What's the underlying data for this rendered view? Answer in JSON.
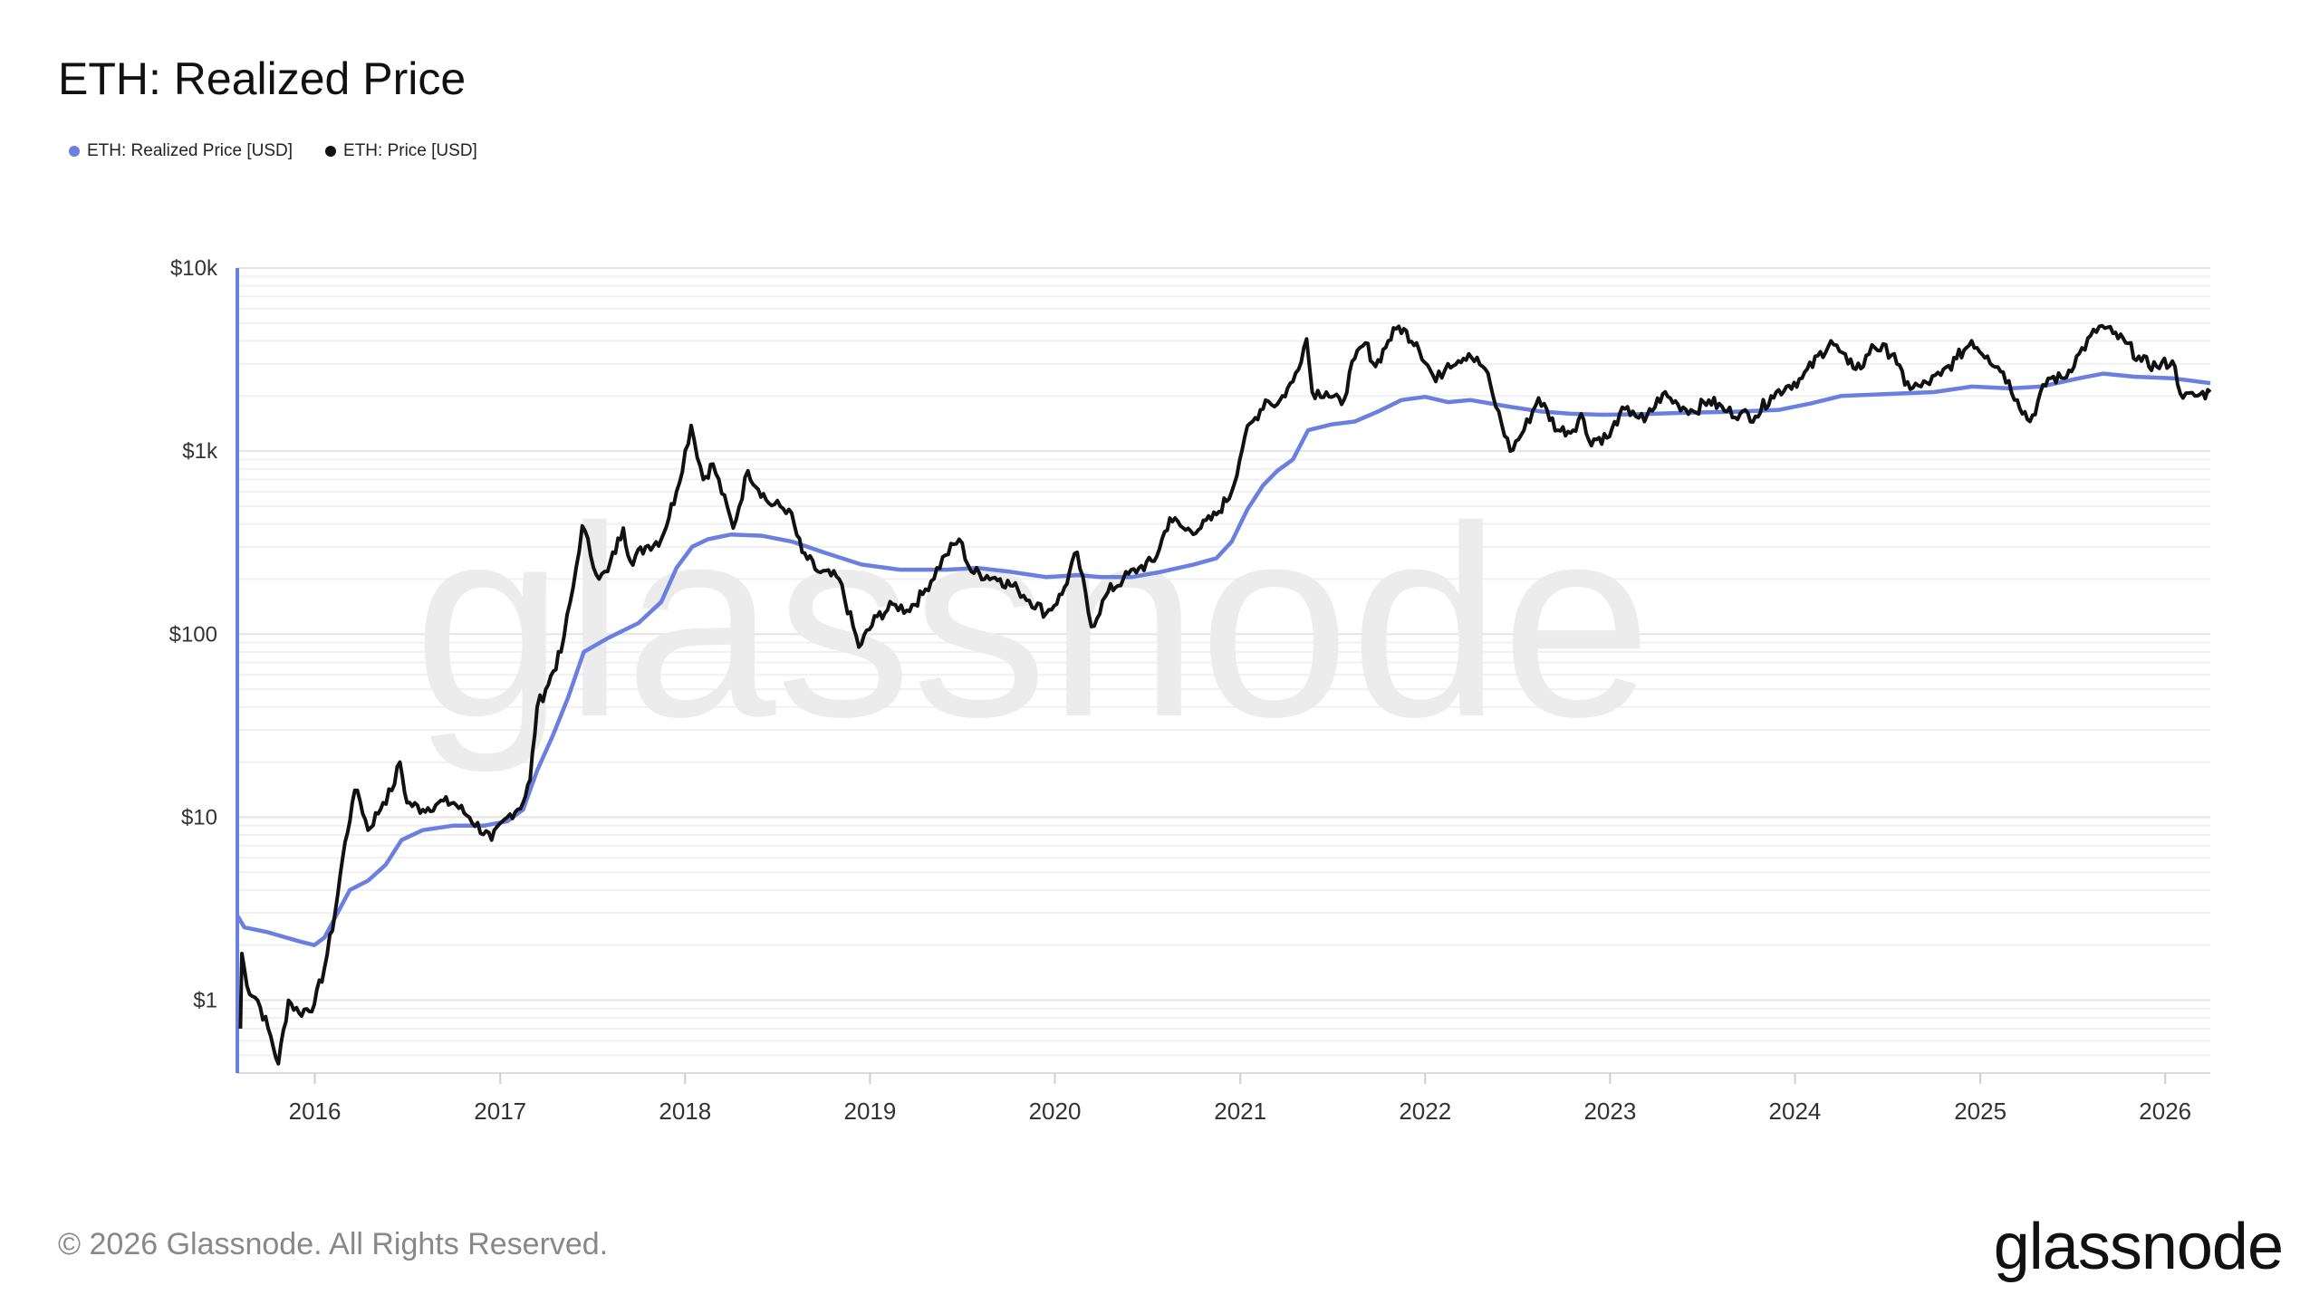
{
  "title": "ETH: Realized Price",
  "legend": [
    {
      "label": "ETH: Realized Price [USD]",
      "color": "#6a7fe0"
    },
    {
      "label": "ETH: Price [USD]",
      "color": "#111111"
    }
  ],
  "watermark": "glassnode",
  "footer": "© 2026 Glassnode. All Rights Reserved.",
  "brand": "glassnode",
  "chart_data": {
    "type": "line",
    "title": "ETH: Realized Price",
    "xlabel": "",
    "ylabel": "",
    "y_scale": "log",
    "ylim": [
      0.4,
      10000
    ],
    "xlim": [
      "2015-08-01",
      "2026-03-31"
    ],
    "y_ticks": [
      {
        "value": 1,
        "label": "$1"
      },
      {
        "value": 10,
        "label": "$10"
      },
      {
        "value": 100,
        "label": "$100"
      },
      {
        "value": 1000,
        "label": "$1k"
      },
      {
        "value": 10000,
        "label": "$10k"
      }
    ],
    "x_ticks": [
      {
        "value": "2016-01-01",
        "label": "2016"
      },
      {
        "value": "2017-01-01",
        "label": "2017"
      },
      {
        "value": "2018-01-01",
        "label": "2018"
      },
      {
        "value": "2019-01-01",
        "label": "2019"
      },
      {
        "value": "2020-01-01",
        "label": "2020"
      },
      {
        "value": "2021-01-01",
        "label": "2021"
      },
      {
        "value": "2022-01-01",
        "label": "2022"
      },
      {
        "value": "2023-01-01",
        "label": "2023"
      },
      {
        "value": "2024-01-01",
        "label": "2024"
      },
      {
        "value": "2025-01-01",
        "label": "2025"
      },
      {
        "value": "2026-01-01",
        "label": "2026"
      }
    ],
    "grid": true,
    "legend_position": "top-left",
    "series": [
      {
        "name": "ETH: Realized Price [USD]",
        "color": "#6a7fe0",
        "points": [
          [
            "2015-08-01",
            2.9
          ],
          [
            "2015-08-15",
            2.5
          ],
          [
            "2015-10-01",
            2.35
          ],
          [
            "2015-12-01",
            2.1
          ],
          [
            "2015-12-31",
            2.0
          ],
          [
            "2016-01-20",
            2.2
          ],
          [
            "2016-02-15",
            3.0
          ],
          [
            "2016-03-10",
            4.0
          ],
          [
            "2016-04-15",
            4.5
          ],
          [
            "2016-05-20",
            5.5
          ],
          [
            "2016-06-20",
            7.5
          ],
          [
            "2016-08-01",
            8.5
          ],
          [
            "2016-10-01",
            9.0
          ],
          [
            "2016-12-01",
            9.0
          ],
          [
            "2017-01-15",
            9.5
          ],
          [
            "2017-02-15",
            11
          ],
          [
            "2017-03-15",
            18
          ],
          [
            "2017-04-15",
            28
          ],
          [
            "2017-05-15",
            45
          ],
          [
            "2017-06-15",
            80
          ],
          [
            "2017-08-01",
            95
          ],
          [
            "2017-10-01",
            115
          ],
          [
            "2017-11-15",
            150
          ],
          [
            "2017-12-15",
            230
          ],
          [
            "2018-01-15",
            300
          ],
          [
            "2018-02-15",
            330
          ],
          [
            "2018-04-01",
            350
          ],
          [
            "2018-06-01",
            345
          ],
          [
            "2018-08-01",
            320
          ],
          [
            "2018-10-01",
            280
          ],
          [
            "2018-12-15",
            240
          ],
          [
            "2019-03-01",
            225
          ],
          [
            "2019-06-01",
            225
          ],
          [
            "2019-08-01",
            230
          ],
          [
            "2019-10-01",
            220
          ],
          [
            "2019-12-15",
            205
          ],
          [
            "2020-02-15",
            210
          ],
          [
            "2020-04-01",
            205
          ],
          [
            "2020-06-01",
            205
          ],
          [
            "2020-08-01",
            220
          ],
          [
            "2020-10-01",
            240
          ],
          [
            "2020-11-15",
            260
          ],
          [
            "2020-12-15",
            320
          ],
          [
            "2021-01-15",
            480
          ],
          [
            "2021-02-15",
            650
          ],
          [
            "2021-03-15",
            780
          ],
          [
            "2021-04-15",
            900
          ],
          [
            "2021-05-15",
            1300
          ],
          [
            "2021-07-01",
            1400
          ],
          [
            "2021-08-15",
            1450
          ],
          [
            "2021-10-01",
            1650
          ],
          [
            "2021-11-15",
            1900
          ],
          [
            "2022-01-01",
            1980
          ],
          [
            "2022-02-15",
            1850
          ],
          [
            "2022-04-01",
            1900
          ],
          [
            "2022-06-15",
            1750
          ],
          [
            "2022-08-15",
            1650
          ],
          [
            "2022-10-15",
            1600
          ],
          [
            "2022-12-15",
            1580
          ],
          [
            "2023-03-01",
            1590
          ],
          [
            "2023-06-01",
            1620
          ],
          [
            "2023-09-01",
            1640
          ],
          [
            "2023-12-01",
            1680
          ],
          [
            "2024-02-01",
            1820
          ],
          [
            "2024-04-01",
            2000
          ],
          [
            "2024-07-01",
            2050
          ],
          [
            "2024-10-01",
            2100
          ],
          [
            "2024-12-15",
            2250
          ],
          [
            "2025-03-01",
            2200
          ],
          [
            "2025-05-01",
            2250
          ],
          [
            "2025-07-15",
            2500
          ],
          [
            "2025-09-01",
            2650
          ],
          [
            "2025-11-01",
            2550
          ],
          [
            "2026-01-15",
            2500
          ],
          [
            "2026-03-31",
            2350
          ]
        ]
      },
      {
        "name": "ETH: Price [USD]",
        "color": "#111111",
        "points": [
          [
            "2015-08-07",
            0.7
          ],
          [
            "2015-08-10",
            1.8
          ],
          [
            "2015-08-20",
            1.2
          ],
          [
            "2015-09-10",
            1.0
          ],
          [
            "2015-10-01",
            0.7
          ],
          [
            "2015-10-21",
            0.45
          ],
          [
            "2015-11-10",
            1.0
          ],
          [
            "2015-12-01",
            0.85
          ],
          [
            "2015-12-31",
            0.95
          ],
          [
            "2016-01-20",
            1.5
          ],
          [
            "2016-02-10",
            3.0
          ],
          [
            "2016-02-25",
            6.0
          ],
          [
            "2016-03-15",
            12
          ],
          [
            "2016-03-25",
            14
          ],
          [
            "2016-04-15",
            8.5
          ],
          [
            "2016-05-15",
            12
          ],
          [
            "2016-06-01",
            14
          ],
          [
            "2016-06-17",
            20
          ],
          [
            "2016-07-01",
            12
          ],
          [
            "2016-08-01",
            11
          ],
          [
            "2016-09-01",
            12
          ],
          [
            "2016-10-01",
            12
          ],
          [
            "2016-11-01",
            10
          ],
          [
            "2016-12-15",
            7.5
          ],
          [
            "2017-01-15",
            10
          ],
          [
            "2017-02-15",
            12
          ],
          [
            "2017-03-01",
            16
          ],
          [
            "2017-03-15",
            40
          ],
          [
            "2017-04-01",
            50
          ],
          [
            "2017-05-01",
            80
          ],
          [
            "2017-05-25",
            180
          ],
          [
            "2017-06-12",
            390
          ],
          [
            "2017-07-15",
            200
          ],
          [
            "2017-08-01",
            220
          ],
          [
            "2017-09-01",
            380
          ],
          [
            "2017-09-15",
            250
          ],
          [
            "2017-10-15",
            300
          ],
          [
            "2017-11-15",
            330
          ],
          [
            "2017-12-15",
            600
          ],
          [
            "2018-01-13",
            1380
          ],
          [
            "2018-02-06",
            700
          ],
          [
            "2018-02-25",
            850
          ],
          [
            "2018-04-06",
            380
          ],
          [
            "2018-05-05",
            780
          ],
          [
            "2018-06-15",
            520
          ],
          [
            "2018-07-25",
            480
          ],
          [
            "2018-08-20",
            280
          ],
          [
            "2018-09-20",
            220
          ],
          [
            "2018-11-01",
            200
          ],
          [
            "2018-12-10",
            85
          ],
          [
            "2019-01-15",
            125
          ],
          [
            "2019-02-20",
            145
          ],
          [
            "2019-03-15",
            135
          ],
          [
            "2019-04-15",
            165
          ],
          [
            "2019-05-30",
            270
          ],
          [
            "2019-06-26",
            330
          ],
          [
            "2019-07-20",
            220
          ],
          [
            "2019-09-15",
            200
          ],
          [
            "2019-10-20",
            175
          ],
          [
            "2019-12-15",
            130
          ],
          [
            "2020-01-15",
            165
          ],
          [
            "2020-02-14",
            280
          ],
          [
            "2020-03-13",
            110
          ],
          [
            "2020-04-15",
            170
          ],
          [
            "2020-05-15",
            200
          ],
          [
            "2020-06-15",
            230
          ],
          [
            "2020-07-15",
            250
          ],
          [
            "2020-08-15",
            430
          ],
          [
            "2020-09-15",
            370
          ],
          [
            "2020-10-15",
            380
          ],
          [
            "2020-11-15",
            450
          ],
          [
            "2020-12-15",
            600
          ],
          [
            "2021-01-10",
            1200
          ],
          [
            "2021-02-20",
            1900
          ],
          [
            "2021-03-15",
            1800
          ],
          [
            "2021-04-15",
            2400
          ],
          [
            "2021-05-12",
            4100
          ],
          [
            "2021-05-23",
            2100
          ],
          [
            "2021-06-20",
            2100
          ],
          [
            "2021-07-20",
            1800
          ],
          [
            "2021-08-15",
            3200
          ],
          [
            "2021-09-05",
            3900
          ],
          [
            "2021-09-25",
            2900
          ],
          [
            "2021-10-20",
            4000
          ],
          [
            "2021-11-10",
            4800
          ],
          [
            "2021-12-15",
            3900
          ],
          [
            "2022-01-22",
            2400
          ],
          [
            "2022-02-15",
            3000
          ],
          [
            "2022-03-28",
            3400
          ],
          [
            "2022-04-30",
            2800
          ],
          [
            "2022-05-15",
            2000
          ],
          [
            "2022-06-18",
            1000
          ],
          [
            "2022-07-15",
            1300
          ],
          [
            "2022-08-13",
            1950
          ],
          [
            "2022-09-20",
            1300
          ],
          [
            "2022-10-20",
            1300
          ],
          [
            "2022-11-05",
            1600
          ],
          [
            "2022-11-20",
            1150
          ],
          [
            "2022-12-31",
            1200
          ],
          [
            "2023-01-20",
            1600
          ],
          [
            "2023-02-15",
            1650
          ],
          [
            "2023-03-10",
            1450
          ],
          [
            "2023-04-15",
            2050
          ],
          [
            "2023-05-15",
            1800
          ],
          [
            "2023-06-15",
            1650
          ],
          [
            "2023-07-15",
            1900
          ],
          [
            "2023-08-20",
            1650
          ],
          [
            "2023-09-15",
            1600
          ],
          [
            "2023-10-15",
            1550
          ],
          [
            "2023-11-15",
            2000
          ],
          [
            "2023-12-15",
            2250
          ],
          [
            "2024-01-15",
            2500
          ],
          [
            "2024-03-12",
            4000
          ],
          [
            "2024-04-15",
            3000
          ],
          [
            "2024-05-15",
            2900
          ],
          [
            "2024-06-01",
            3800
          ],
          [
            "2024-07-15",
            3400
          ],
          [
            "2024-08-05",
            2300
          ],
          [
            "2024-09-06",
            2250
          ],
          [
            "2024-10-15",
            2600
          ],
          [
            "2024-11-15",
            3200
          ],
          [
            "2024-12-15",
            4000
          ],
          [
            "2025-01-15",
            3300
          ],
          [
            "2025-02-15",
            2700
          ],
          [
            "2025-03-15",
            1900
          ],
          [
            "2025-04-09",
            1450
          ],
          [
            "2025-05-15",
            2500
          ],
          [
            "2025-06-15",
            2500
          ],
          [
            "2025-07-15",
            3400
          ],
          [
            "2025-08-24",
            4800
          ],
          [
            "2025-09-20",
            4400
          ],
          [
            "2025-10-15",
            3900
          ],
          [
            "2025-11-15",
            3100
          ],
          [
            "2025-12-15",
            2900
          ],
          [
            "2026-01-15",
            3100
          ],
          [
            "2026-02-05",
            1950
          ],
          [
            "2026-03-01",
            2000
          ],
          [
            "2026-03-31",
            2100
          ]
        ]
      }
    ]
  }
}
